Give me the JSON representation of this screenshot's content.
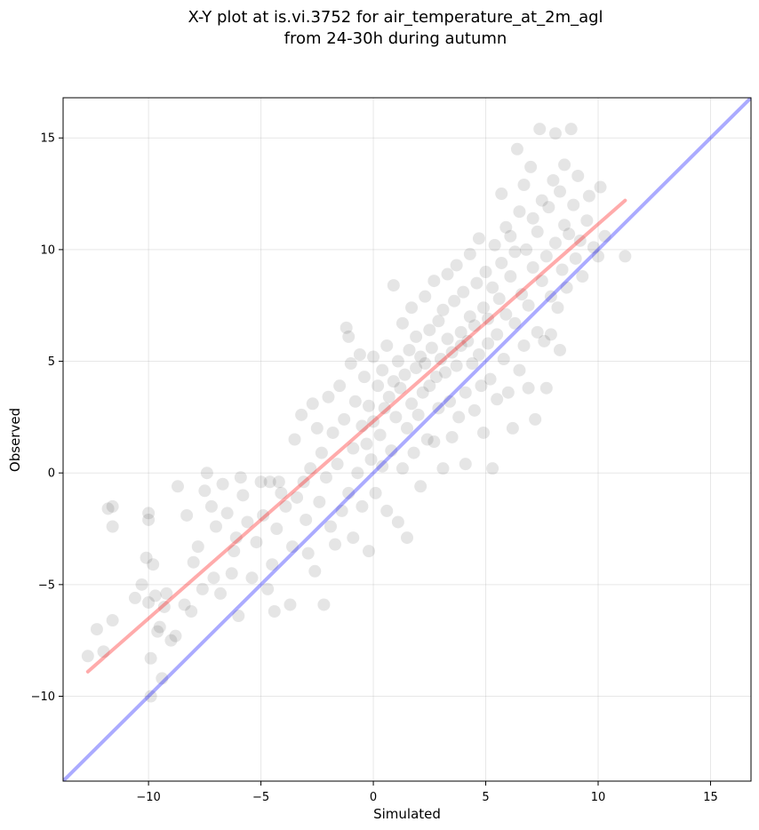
{
  "chart_data": {
    "type": "scatter",
    "title": "X-Y plot at is.vi.3752 for air_temperature_at_2m_agl",
    "subtitle": "from 24-30h during autumn",
    "xlabel": "Simulated",
    "ylabel": "Observed",
    "xlim": [
      -13.8,
      16.8
    ],
    "ylim": [
      -13.8,
      16.8
    ],
    "xticks": [
      -10,
      -5,
      0,
      5,
      10,
      15
    ],
    "yticks": [
      -10,
      -5,
      0,
      5,
      10,
      15
    ],
    "xtick_labels": [
      "−10",
      "−5",
      "0",
      "5",
      "10",
      "15"
    ],
    "ytick_labels": [
      "−10",
      "−5",
      "0",
      "5",
      "10",
      "15"
    ],
    "grid": true,
    "point_color": "#000000",
    "point_alpha": 0.1,
    "series": [
      {
        "kind": "points",
        "points": [
          [
            -12.7,
            -8.2
          ],
          [
            -12.3,
            -7.0
          ],
          [
            -12.0,
            -8.0
          ],
          [
            -11.8,
            -1.6
          ],
          [
            -11.6,
            -1.5
          ],
          [
            -11.6,
            -2.4
          ],
          [
            -11.6,
            -6.6
          ],
          [
            -10.6,
            -5.6
          ],
          [
            -10.3,
            -5.0
          ],
          [
            -10.1,
            -3.8
          ],
          [
            -10.0,
            -5.8
          ],
          [
            -10.0,
            -1.8
          ],
          [
            -10.0,
            -2.1
          ],
          [
            -9.9,
            -8.3
          ],
          [
            -9.9,
            -10.0
          ],
          [
            -9.8,
            -4.1
          ],
          [
            -9.7,
            -5.5
          ],
          [
            -9.6,
            -7.1
          ],
          [
            -9.5,
            -6.9
          ],
          [
            -9.4,
            -9.2
          ],
          [
            -9.3,
            -6.0
          ],
          [
            -9.2,
            -5.4
          ],
          [
            -9.0,
            -7.5
          ],
          [
            -8.8,
            -7.3
          ],
          [
            -8.7,
            -0.6
          ],
          [
            -8.4,
            -5.9
          ],
          [
            -8.3,
            -1.9
          ],
          [
            -8.1,
            -6.2
          ],
          [
            -8.0,
            -4.0
          ],
          [
            -7.8,
            -3.3
          ],
          [
            -7.6,
            -5.2
          ],
          [
            -7.5,
            -0.8
          ],
          [
            -7.4,
            0.0
          ],
          [
            -7.2,
            -1.5
          ],
          [
            -7.1,
            -4.7
          ],
          [
            -7.0,
            -2.4
          ],
          [
            -6.8,
            -5.4
          ],
          [
            -6.7,
            -0.5
          ],
          [
            -6.5,
            -1.8
          ],
          [
            -6.3,
            -4.5
          ],
          [
            -6.2,
            -3.5
          ],
          [
            -6.1,
            -2.9
          ],
          [
            -6.0,
            -6.4
          ],
          [
            -5.9,
            -0.2
          ],
          [
            -5.8,
            -1.0
          ],
          [
            -5.6,
            -2.2
          ],
          [
            -5.4,
            -4.7
          ],
          [
            -5.2,
            -3.1
          ],
          [
            -5.0,
            -0.4
          ],
          [
            -4.9,
            -1.9
          ],
          [
            -4.7,
            -5.2
          ],
          [
            -4.6,
            -0.4
          ],
          [
            -4.5,
            -4.1
          ],
          [
            -4.4,
            -6.2
          ],
          [
            -4.3,
            -2.5
          ],
          [
            -4.2,
            -0.4
          ],
          [
            -4.1,
            -0.9
          ],
          [
            -3.9,
            -1.5
          ],
          [
            -3.7,
            -5.9
          ],
          [
            -3.6,
            -3.3
          ],
          [
            -3.5,
            1.5
          ],
          [
            -3.4,
            -1.1
          ],
          [
            -3.2,
            2.6
          ],
          [
            -3.1,
            -0.4
          ],
          [
            -3.0,
            -2.1
          ],
          [
            -2.9,
            -3.6
          ],
          [
            -2.8,
            0.2
          ],
          [
            -2.7,
            3.1
          ],
          [
            -2.6,
            -4.4
          ],
          [
            -2.5,
            2.0
          ],
          [
            -2.4,
            -1.3
          ],
          [
            -2.3,
            0.9
          ],
          [
            -2.2,
            -5.9
          ],
          [
            -2.1,
            -0.2
          ],
          [
            -2.0,
            3.4
          ],
          [
            -1.9,
            -2.4
          ],
          [
            -1.8,
            1.8
          ],
          [
            -1.7,
            -3.2
          ],
          [
            -1.6,
            0.4
          ],
          [
            -1.5,
            3.9
          ],
          [
            -1.4,
            -1.7
          ],
          [
            -1.3,
            2.4
          ],
          [
            -1.2,
            6.5
          ],
          [
            -1.1,
            6.1
          ],
          [
            -1.1,
            -0.9
          ],
          [
            -1.0,
            4.9
          ],
          [
            -0.9,
            1.1
          ],
          [
            -0.9,
            -2.9
          ],
          [
            -0.8,
            3.2
          ],
          [
            -0.7,
            0.0
          ],
          [
            -0.6,
            5.3
          ],
          [
            -0.5,
            -1.5
          ],
          [
            -0.5,
            2.1
          ],
          [
            -0.4,
            4.3
          ],
          [
            -0.3,
            1.3
          ],
          [
            -0.2,
            -3.5
          ],
          [
            -0.2,
            3.0
          ],
          [
            -0.1,
            0.6
          ],
          [
            0.0,
            5.2
          ],
          [
            0.0,
            2.3
          ],
          [
            0.1,
            -0.9
          ],
          [
            0.2,
            3.9
          ],
          [
            0.3,
            1.7
          ],
          [
            0.4,
            4.6
          ],
          [
            0.4,
            0.3
          ],
          [
            0.5,
            2.9
          ],
          [
            0.6,
            -1.7
          ],
          [
            0.6,
            5.7
          ],
          [
            0.7,
            3.4
          ],
          [
            0.8,
            1.0
          ],
          [
            0.9,
            4.1
          ],
          [
            0.9,
            8.4
          ],
          [
            1.0,
            2.5
          ],
          [
            1.1,
            -2.2
          ],
          [
            1.1,
            5.0
          ],
          [
            1.2,
            3.8
          ],
          [
            1.3,
            0.2
          ],
          [
            1.3,
            6.7
          ],
          [
            1.4,
            4.4
          ],
          [
            1.5,
            2.0
          ],
          [
            1.5,
            -2.9
          ],
          [
            1.6,
            5.5
          ],
          [
            1.7,
            3.1
          ],
          [
            1.7,
            7.4
          ],
          [
            1.8,
            0.9
          ],
          [
            1.9,
            4.7
          ],
          [
            1.9,
            6.1
          ],
          [
            2.0,
            2.6
          ],
          [
            2.1,
            5.2
          ],
          [
            2.1,
            -0.6
          ],
          [
            2.2,
            3.6
          ],
          [
            2.3,
            7.9
          ],
          [
            2.3,
            4.9
          ],
          [
            2.4,
            1.5
          ],
          [
            2.5,
            6.4
          ],
          [
            2.5,
            3.9
          ],
          [
            2.6,
            5.6
          ],
          [
            2.7,
            1.4
          ],
          [
            2.7,
            8.6
          ],
          [
            2.8,
            4.3
          ],
          [
            2.9,
            6.8
          ],
          [
            2.9,
            2.9
          ],
          [
            3.0,
            5.1
          ],
          [
            3.1,
            7.3
          ],
          [
            3.1,
            0.2
          ],
          [
            3.2,
            4.5
          ],
          [
            3.3,
            6.0
          ],
          [
            3.3,
            8.9
          ],
          [
            3.4,
            3.2
          ],
          [
            3.5,
            5.4
          ],
          [
            3.5,
            1.6
          ],
          [
            3.6,
            7.7
          ],
          [
            3.7,
            4.8
          ],
          [
            3.7,
            9.3
          ],
          [
            3.8,
            2.5
          ],
          [
            3.9,
            6.3
          ],
          [
            3.9,
            5.7
          ],
          [
            4.0,
            8.1
          ],
          [
            4.1,
            3.6
          ],
          [
            4.1,
            0.4
          ],
          [
            4.2,
            5.9
          ],
          [
            4.3,
            7.0
          ],
          [
            4.3,
            9.8
          ],
          [
            4.4,
            4.9
          ],
          [
            4.5,
            2.8
          ],
          [
            4.5,
            6.6
          ],
          [
            4.6,
            8.5
          ],
          [
            4.7,
            5.3
          ],
          [
            4.7,
            10.5
          ],
          [
            4.8,
            3.9
          ],
          [
            4.9,
            7.4
          ],
          [
            4.9,
            1.8
          ],
          [
            5.0,
            9.0
          ],
          [
            5.1,
            5.8
          ],
          [
            5.1,
            6.9
          ],
          [
            5.2,
            4.2
          ],
          [
            5.3,
            8.3
          ],
          [
            5.3,
            0.2
          ],
          [
            5.4,
            10.2
          ],
          [
            5.5,
            6.2
          ],
          [
            5.5,
            3.3
          ],
          [
            5.6,
            7.8
          ],
          [
            5.7,
            12.5
          ],
          [
            5.7,
            9.4
          ],
          [
            5.8,
            5.1
          ],
          [
            5.9,
            11.0
          ],
          [
            5.9,
            7.1
          ],
          [
            6.0,
            3.6
          ],
          [
            6.1,
            8.8
          ],
          [
            6.1,
            10.6
          ],
          [
            6.2,
            2.0
          ],
          [
            6.3,
            6.7
          ],
          [
            6.3,
            9.9
          ],
          [
            6.4,
            14.5
          ],
          [
            6.5,
            4.6
          ],
          [
            6.5,
            11.7
          ],
          [
            6.6,
            8.0
          ],
          [
            6.7,
            5.7
          ],
          [
            6.7,
            12.9
          ],
          [
            6.8,
            10.0
          ],
          [
            6.9,
            3.8
          ],
          [
            6.9,
            7.5
          ],
          [
            7.0,
            13.7
          ],
          [
            7.1,
            9.2
          ],
          [
            7.1,
            11.4
          ],
          [
            7.2,
            2.4
          ],
          [
            7.3,
            6.3
          ],
          [
            7.3,
            10.8
          ],
          [
            7.4,
            15.4
          ],
          [
            7.5,
            8.6
          ],
          [
            7.5,
            12.2
          ],
          [
            7.6,
            5.9
          ],
          [
            7.7,
            9.7
          ],
          [
            7.7,
            3.8
          ],
          [
            7.8,
            11.9
          ],
          [
            7.9,
            7.9
          ],
          [
            7.9,
            6.2
          ],
          [
            8.0,
            13.1
          ],
          [
            8.1,
            15.2
          ],
          [
            8.1,
            10.3
          ],
          [
            8.2,
            7.4
          ],
          [
            8.3,
            5.5
          ],
          [
            8.3,
            12.6
          ],
          [
            8.4,
            9.1
          ],
          [
            8.5,
            13.8
          ],
          [
            8.5,
            11.1
          ],
          [
            8.6,
            8.3
          ],
          [
            8.7,
            10.7
          ],
          [
            8.8,
            15.4
          ],
          [
            8.9,
            12.0
          ],
          [
            9.0,
            9.6
          ],
          [
            9.1,
            13.3
          ],
          [
            9.2,
            10.4
          ],
          [
            9.3,
            8.8
          ],
          [
            9.5,
            11.3
          ],
          [
            9.6,
            12.4
          ],
          [
            9.8,
            10.1
          ],
          [
            10.1,
            12.8
          ],
          [
            10.0,
            9.7
          ],
          [
            10.3,
            10.6
          ],
          [
            11.2,
            9.7
          ]
        ]
      },
      {
        "kind": "line",
        "name": "",
        "color": "#ff0000",
        "alpha": 0.33,
        "points": [
          [
            -12.7,
            -8.9
          ],
          [
            11.2,
            12.2
          ]
        ]
      },
      {
        "kind": "line",
        "name": "",
        "color": "#0000ff",
        "alpha": 0.33,
        "points": [
          [
            -13.8,
            -13.8
          ],
          [
            16.8,
            16.8
          ]
        ]
      }
    ]
  }
}
